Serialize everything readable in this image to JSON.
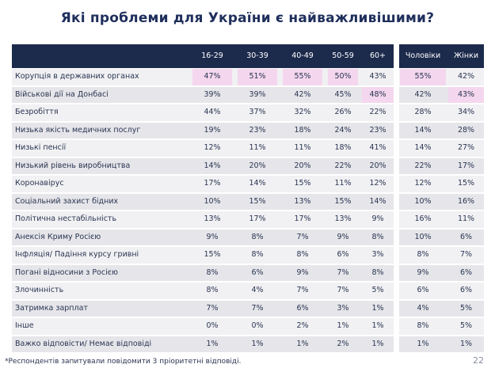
{
  "title": "Які проблеми для України є найважливішими?",
  "columns": [
    "16-29",
    "30-39",
    "40-49",
    "50-59",
    "60+",
    "Чоловіки",
    "Жінки"
  ],
  "rows": [
    {
      "label": "Корупція в державних органах",
      "values": [
        "47%",
        "51%",
        "55%",
        "50%",
        "43%",
        "55%",
        "42%"
      ],
      "highlight": [
        true,
        true,
        true,
        true,
        false,
        true,
        false
      ]
    },
    {
      "label": "Військові дії на Донбасі",
      "values": [
        "39%",
        "39%",
        "42%",
        "45%",
        "48%",
        "42%",
        "43%"
      ],
      "highlight": [
        false,
        false,
        false,
        false,
        true,
        false,
        true
      ]
    },
    {
      "label": "Безробіття",
      "values": [
        "44%",
        "37%",
        "32%",
        "26%",
        "22%",
        "28%",
        "34%"
      ],
      "highlight": [
        false,
        false,
        false,
        false,
        false,
        false,
        false
      ]
    },
    {
      "label": "Низька якість медичних послуг",
      "values": [
        "19%",
        "23%",
        "18%",
        "24%",
        "23%",
        "14%",
        "28%"
      ],
      "highlight": [
        false,
        false,
        false,
        false,
        false,
        false,
        false
      ]
    },
    {
      "label": "Низькі пенсії",
      "values": [
        "12%",
        "11%",
        "11%",
        "18%",
        "41%",
        "14%",
        "27%"
      ],
      "highlight": [
        false,
        false,
        false,
        false,
        false,
        false,
        false
      ]
    },
    {
      "label": "Низький рівень виробництва",
      "values": [
        "14%",
        "20%",
        "20%",
        "22%",
        "20%",
        "22%",
        "17%"
      ],
      "highlight": [
        false,
        false,
        false,
        false,
        false,
        false,
        false
      ]
    },
    {
      "label": "Коронавірус",
      "values": [
        "17%",
        "14%",
        "15%",
        "11%",
        "12%",
        "12%",
        "15%"
      ],
      "highlight": [
        false,
        false,
        false,
        false,
        false,
        false,
        false
      ]
    },
    {
      "label": "Соціальний захист бідних",
      "values": [
        "10%",
        "15%",
        "13%",
        "15%",
        "14%",
        "10%",
        "16%"
      ],
      "highlight": [
        false,
        false,
        false,
        false,
        false,
        false,
        false
      ]
    },
    {
      "label": "Політична нестабільність",
      "values": [
        "13%",
        "17%",
        "17%",
        "13%",
        "9%",
        "16%",
        "11%"
      ],
      "highlight": [
        false,
        false,
        false,
        false,
        false,
        false,
        false
      ]
    },
    {
      "label": "Анексія Криму Росією",
      "values": [
        "9%",
        "8%",
        "7%",
        "9%",
        "8%",
        "10%",
        "6%"
      ],
      "highlight": [
        false,
        false,
        false,
        false,
        false,
        false,
        false
      ]
    },
    {
      "label": "Інфляція/ Падіння курсу гривні",
      "values": [
        "15%",
        "8%",
        "8%",
        "6%",
        "3%",
        "8%",
        "7%"
      ],
      "highlight": [
        false,
        false,
        false,
        false,
        false,
        false,
        false
      ]
    },
    {
      "label": "Погані відносини з Росією",
      "values": [
        "8%",
        "6%",
        "9%",
        "7%",
        "8%",
        "9%",
        "6%"
      ],
      "highlight": [
        false,
        false,
        false,
        false,
        false,
        false,
        false
      ]
    },
    {
      "label": "Злочинність",
      "values": [
        "8%",
        "4%",
        "7%",
        "7%",
        "5%",
        "6%",
        "6%"
      ],
      "highlight": [
        false,
        false,
        false,
        false,
        false,
        false,
        false
      ]
    },
    {
      "label": "Затримка зарплат",
      "values": [
        "7%",
        "7%",
        "6%",
        "3%",
        "1%",
        "4%",
        "5%"
      ],
      "highlight": [
        false,
        false,
        false,
        false,
        false,
        false,
        false
      ]
    },
    {
      "label": "Інше",
      "values": [
        "0%",
        "0%",
        "2%",
        "1%",
        "1%",
        "8%",
        "5%"
      ],
      "highlight": [
        false,
        false,
        false,
        false,
        false,
        false,
        false
      ]
    },
    {
      "label": "Важко відповісти/ Немає відповіді",
      "values": [
        "1%",
        "1%",
        "1%",
        "2%",
        "1%",
        "1%",
        "1%"
      ],
      "highlight": [
        false,
        false,
        false,
        false,
        false,
        false,
        false
      ]
    }
  ],
  "footnote": "*Респондентів запитували повідомити 3 пріоритетні відповіді.",
  "page_number": "22",
  "colors": {
    "header": "#1c2a4c",
    "highlight": "#f4d7ee",
    "row_light": "#f1f1f3",
    "row_dark": "#e6e6ea"
  }
}
